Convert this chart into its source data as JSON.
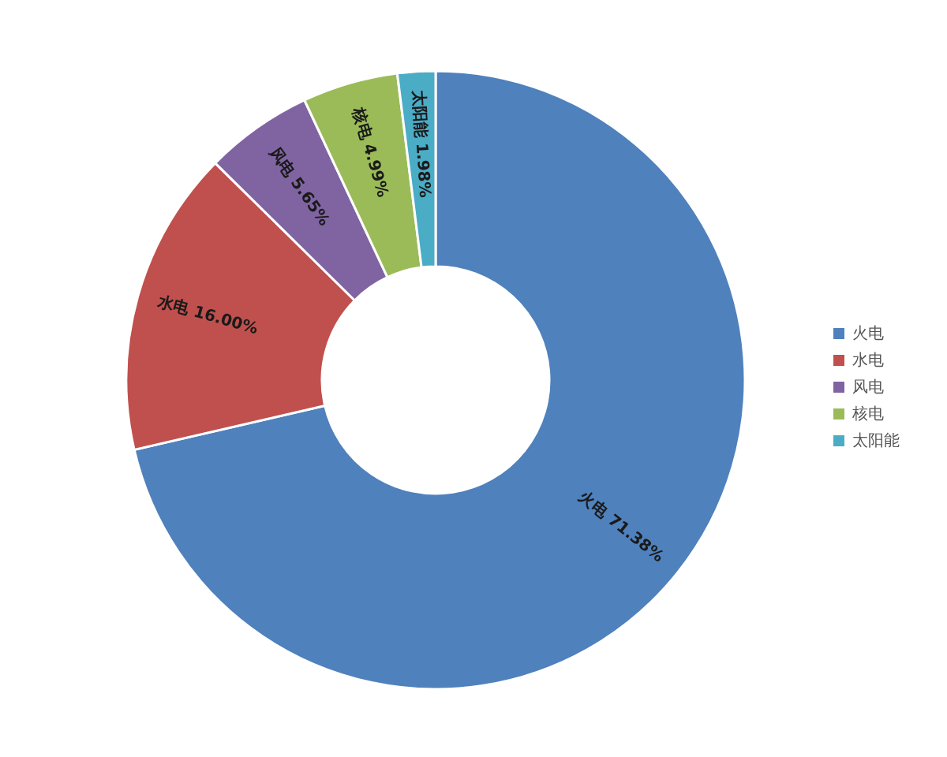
{
  "chart_data": {
    "type": "donut",
    "categories": [
      "火电",
      "水电",
      "风电",
      "核电",
      "太阳能"
    ],
    "values": [
      71.38,
      16.0,
      5.65,
      4.99,
      1.98
    ],
    "colors": [
      "#4f81bd",
      "#c0504d",
      "#8064a2",
      "#9bbb59",
      "#4bacc6"
    ],
    "value_labels": [
      "71.38%",
      "16.00%",
      "5.65%",
      "4.99%",
      "1.98%"
    ],
    "legend": "right"
  }
}
